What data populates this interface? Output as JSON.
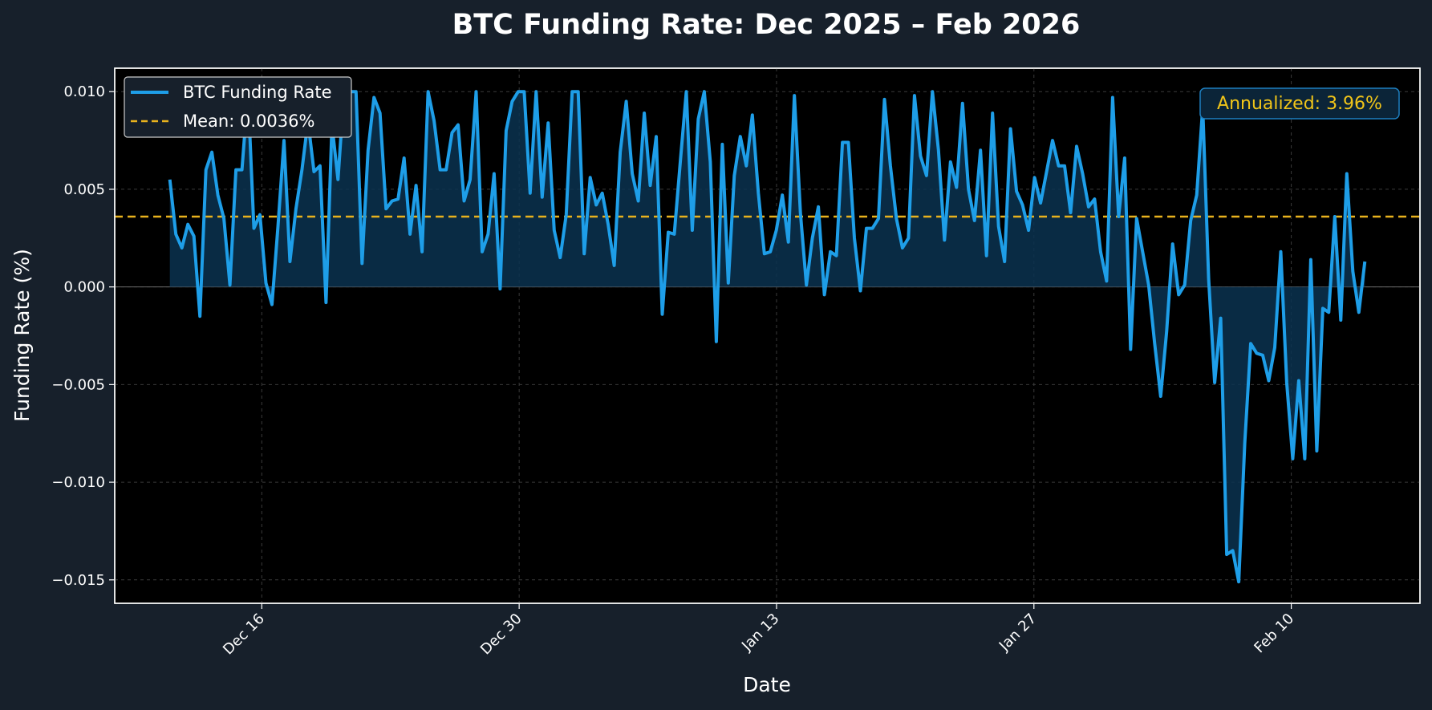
{
  "chart_data": {
    "type": "line",
    "title": "BTC Funding Rate: Dec 2025 – Feb 2026",
    "xlabel": "Date",
    "ylabel": "Funding Rate (%)",
    "x_start": "2025-12-11",
    "x_end": "2026-02-14",
    "x_range": [
      "2025-12-08",
      "2026-02-17"
    ],
    "x_ticks": [
      {
        "date": "2025-12-16",
        "label": "Dec 16"
      },
      {
        "date": "2025-12-30",
        "label": "Dec 30"
      },
      {
        "date": "2026-01-13",
        "label": "Jan 13"
      },
      {
        "date": "2026-01-27",
        "label": "Jan 27"
      },
      {
        "date": "2026-02-10",
        "label": "Feb 10"
      }
    ],
    "ylim": [
      -0.0162,
      0.0112
    ],
    "y_ticks": [
      {
        "value": 0.01,
        "label": "0.010"
      },
      {
        "value": 0.005,
        "label": "0.005"
      },
      {
        "value": 0.0,
        "label": "0.000"
      },
      {
        "value": -0.005,
        "label": "−0.005"
      },
      {
        "value": -0.01,
        "label": "−0.010"
      },
      {
        "value": -0.015,
        "label": "−0.015"
      }
    ],
    "grid": true,
    "legend_position": "top-left",
    "series": [
      {
        "name": "BTC Funding Rate",
        "color": "#1e9ee8",
        "values": [
          0.0055,
          0.0027,
          0.002,
          0.0032,
          0.0026,
          -0.0015,
          0.006,
          0.0069,
          0.0047,
          0.0035,
          0.0001,
          0.006,
          0.006,
          0.01,
          0.003,
          0.0037,
          0.0002,
          -0.0009,
          0.0031,
          0.0075,
          0.0013,
          0.004,
          0.006,
          0.0085,
          0.0059,
          0.0062,
          -0.0008,
          0.0083,
          0.0055,
          0.01,
          0.01,
          0.01,
          0.0012,
          0.007,
          0.0097,
          0.0089,
          0.004,
          0.0044,
          0.0045,
          0.0066,
          0.0027,
          0.0052,
          0.0018,
          0.01,
          0.0085,
          0.006,
          0.006,
          0.0079,
          0.0083,
          0.0044,
          0.0055,
          0.01,
          0.0018,
          0.0027,
          0.0058,
          -0.0001,
          0.008,
          0.0095,
          0.01,
          0.01,
          0.0048,
          0.01,
          0.0046,
          0.0084,
          0.0029,
          0.0015,
          0.0037,
          0.01,
          0.01,
          0.0017,
          0.0056,
          0.0042,
          0.0048,
          0.0032,
          0.0011,
          0.0069,
          0.0095,
          0.0058,
          0.0044,
          0.0089,
          0.0052,
          0.0077,
          -0.0014,
          0.0028,
          0.0027,
          0.0064,
          0.01,
          0.0029,
          0.0086,
          0.01,
          0.0064,
          -0.0028,
          0.0073,
          0.0002,
          0.0057,
          0.0077,
          0.0062,
          0.0088,
          0.0048,
          0.0017,
          0.0018,
          0.0029,
          0.0047,
          0.0023,
          0.0098,
          0.0038,
          0.0001,
          0.0025,
          0.0041,
          -0.0004,
          0.0018,
          0.0016,
          0.0074,
          0.0074,
          0.0025,
          -0.0002,
          0.003,
          0.003,
          0.0035,
          0.0096,
          0.0062,
          0.0035,
          0.002,
          0.0025,
          0.0098,
          0.0067,
          0.0057,
          0.01,
          0.007,
          0.0024,
          0.0064,
          0.0051,
          0.0094,
          0.005,
          0.0034,
          0.007,
          0.0016,
          0.0089,
          0.0031,
          0.0013,
          0.0081,
          0.0049,
          0.0042,
          0.0029,
          0.0056,
          0.0043,
          0.0059,
          0.0075,
          0.0062,
          0.0062,
          0.0038,
          0.0072,
          0.0058,
          0.0041,
          0.0045,
          0.0018,
          0.0003,
          0.0097,
          0.0036,
          0.0066,
          -0.0032,
          0.0035,
          0.0018,
          0.0001,
          -0.0029,
          -0.0056,
          -0.0023,
          0.0022,
          -0.0004,
          0.0001,
          0.0034,
          0.0047,
          0.0092,
          0.0004,
          -0.0049,
          -0.0016,
          -0.0137,
          -0.0135,
          -0.0151,
          -0.008,
          -0.0029,
          -0.0034,
          -0.0035,
          -0.0048,
          -0.0031,
          0.0018,
          -0.0049,
          -0.0088,
          -0.0048,
          -0.0088,
          0.0014,
          -0.0084,
          -0.0011,
          -0.0013,
          0.0036,
          -0.0017,
          0.0058,
          0.0008,
          -0.0013,
          0.0013
        ]
      },
      {
        "name": "Mean: 0.0036%",
        "color": "#e8b21d",
        "value": 0.0036
      }
    ],
    "annotation": {
      "text": "Annualized: 3.96%",
      "position": "top-right"
    }
  },
  "colors": {
    "page_bg": "#17202b",
    "plot_bg": "#000000",
    "line": "#1e9ee8",
    "fill": "#0b3350",
    "mean": "#e8b21d",
    "annotation_text": "#f0c419",
    "annotation_border": "#1e7fbf",
    "grid": "#3a3a3a"
  }
}
